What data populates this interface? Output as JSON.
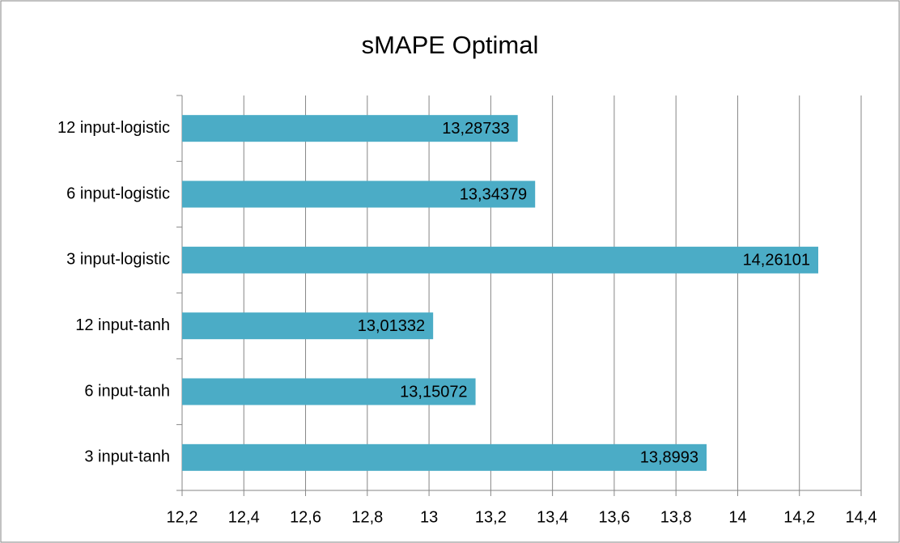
{
  "chart_data": {
    "type": "bar",
    "orientation": "horizontal",
    "title": "sMAPE Optimal",
    "categories": [
      "12 input-logistic",
      "6 input-logistic",
      "3 input-logistic",
      "12 input-tanh",
      "6 input-tanh",
      "3 input-tanh"
    ],
    "values": [
      13.28733,
      13.34379,
      14.26101,
      13.01332,
      13.15072,
      13.8993
    ],
    "value_labels": [
      "13,28733",
      "13,34379",
      "14,26101",
      "13,01332",
      "13,15072",
      "13,8993"
    ],
    "color": "#4bacc6",
    "xlim": [
      12.2,
      14.4
    ],
    "xticks": [
      {
        "value": 12.2,
        "label": "12,2"
      },
      {
        "value": 12.4,
        "label": "12,4"
      },
      {
        "value": 12.6,
        "label": "12,6"
      },
      {
        "value": 12.8,
        "label": "12,8"
      },
      13,
      {
        "value": 13.2,
        "label": "13,2"
      },
      {
        "value": 13.4,
        "label": "13,4"
      },
      {
        "value": 13.6,
        "label": "13,6"
      },
      {
        "value": 13.8,
        "label": "13,8"
      },
      14,
      {
        "value": 14.2,
        "label": "14,2"
      },
      {
        "value": 14.4,
        "label": "14,4"
      }
    ],
    "grid": true
  }
}
